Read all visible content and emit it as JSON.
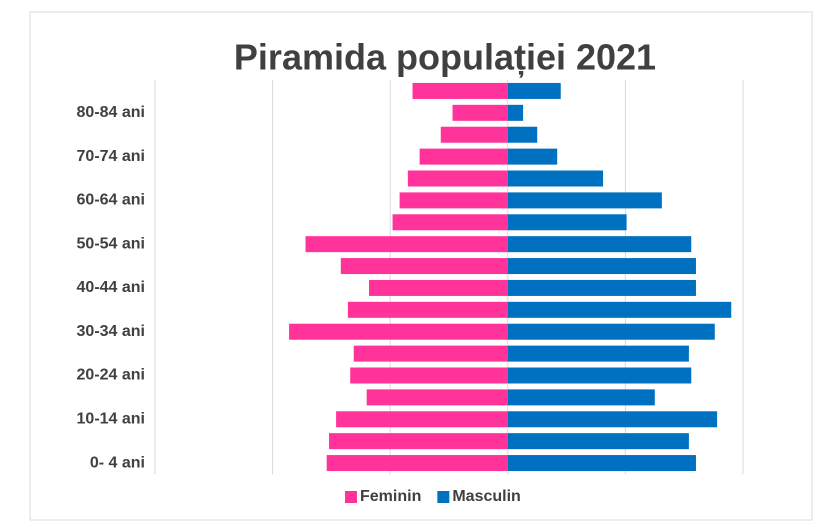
{
  "chart_data": {
    "type": "pyramid",
    "title": "Piramida populației 2021",
    "categories": [
      "0- 4 ani",
      null,
      "10-14 ani",
      null,
      "20-24 ani",
      null,
      "30-34 ani",
      null,
      "40-44 ani",
      null,
      "50-54 ani",
      null,
      "60-64 ani",
      null,
      "70-74 ani",
      null,
      "80-84 ani",
      null
    ],
    "series": [
      {
        "name": "Feminin",
        "color": "#ff3399",
        "values": [
          -1.54,
          -1.52,
          -1.46,
          -1.2,
          -1.34,
          -1.31,
          -1.86,
          -1.36,
          -1.18,
          -1.42,
          -1.72,
          -0.98,
          -0.92,
          -0.85,
          -0.75,
          -0.57,
          -0.47,
          -0.81
        ]
      },
      {
        "name": "Masculin",
        "color": "#0070c0",
        "values": [
          1.6,
          1.54,
          1.78,
          1.25,
          1.56,
          1.54,
          1.76,
          1.9,
          1.6,
          1.6,
          1.56,
          1.01,
          1.31,
          0.81,
          0.42,
          0.25,
          0.13,
          0.45
        ]
      }
    ],
    "xlim": [
      -3,
      2
    ],
    "xticks": [
      -3,
      -2,
      -1,
      0,
      1,
      2
    ],
    "grid": true,
    "legend": "bottom"
  }
}
